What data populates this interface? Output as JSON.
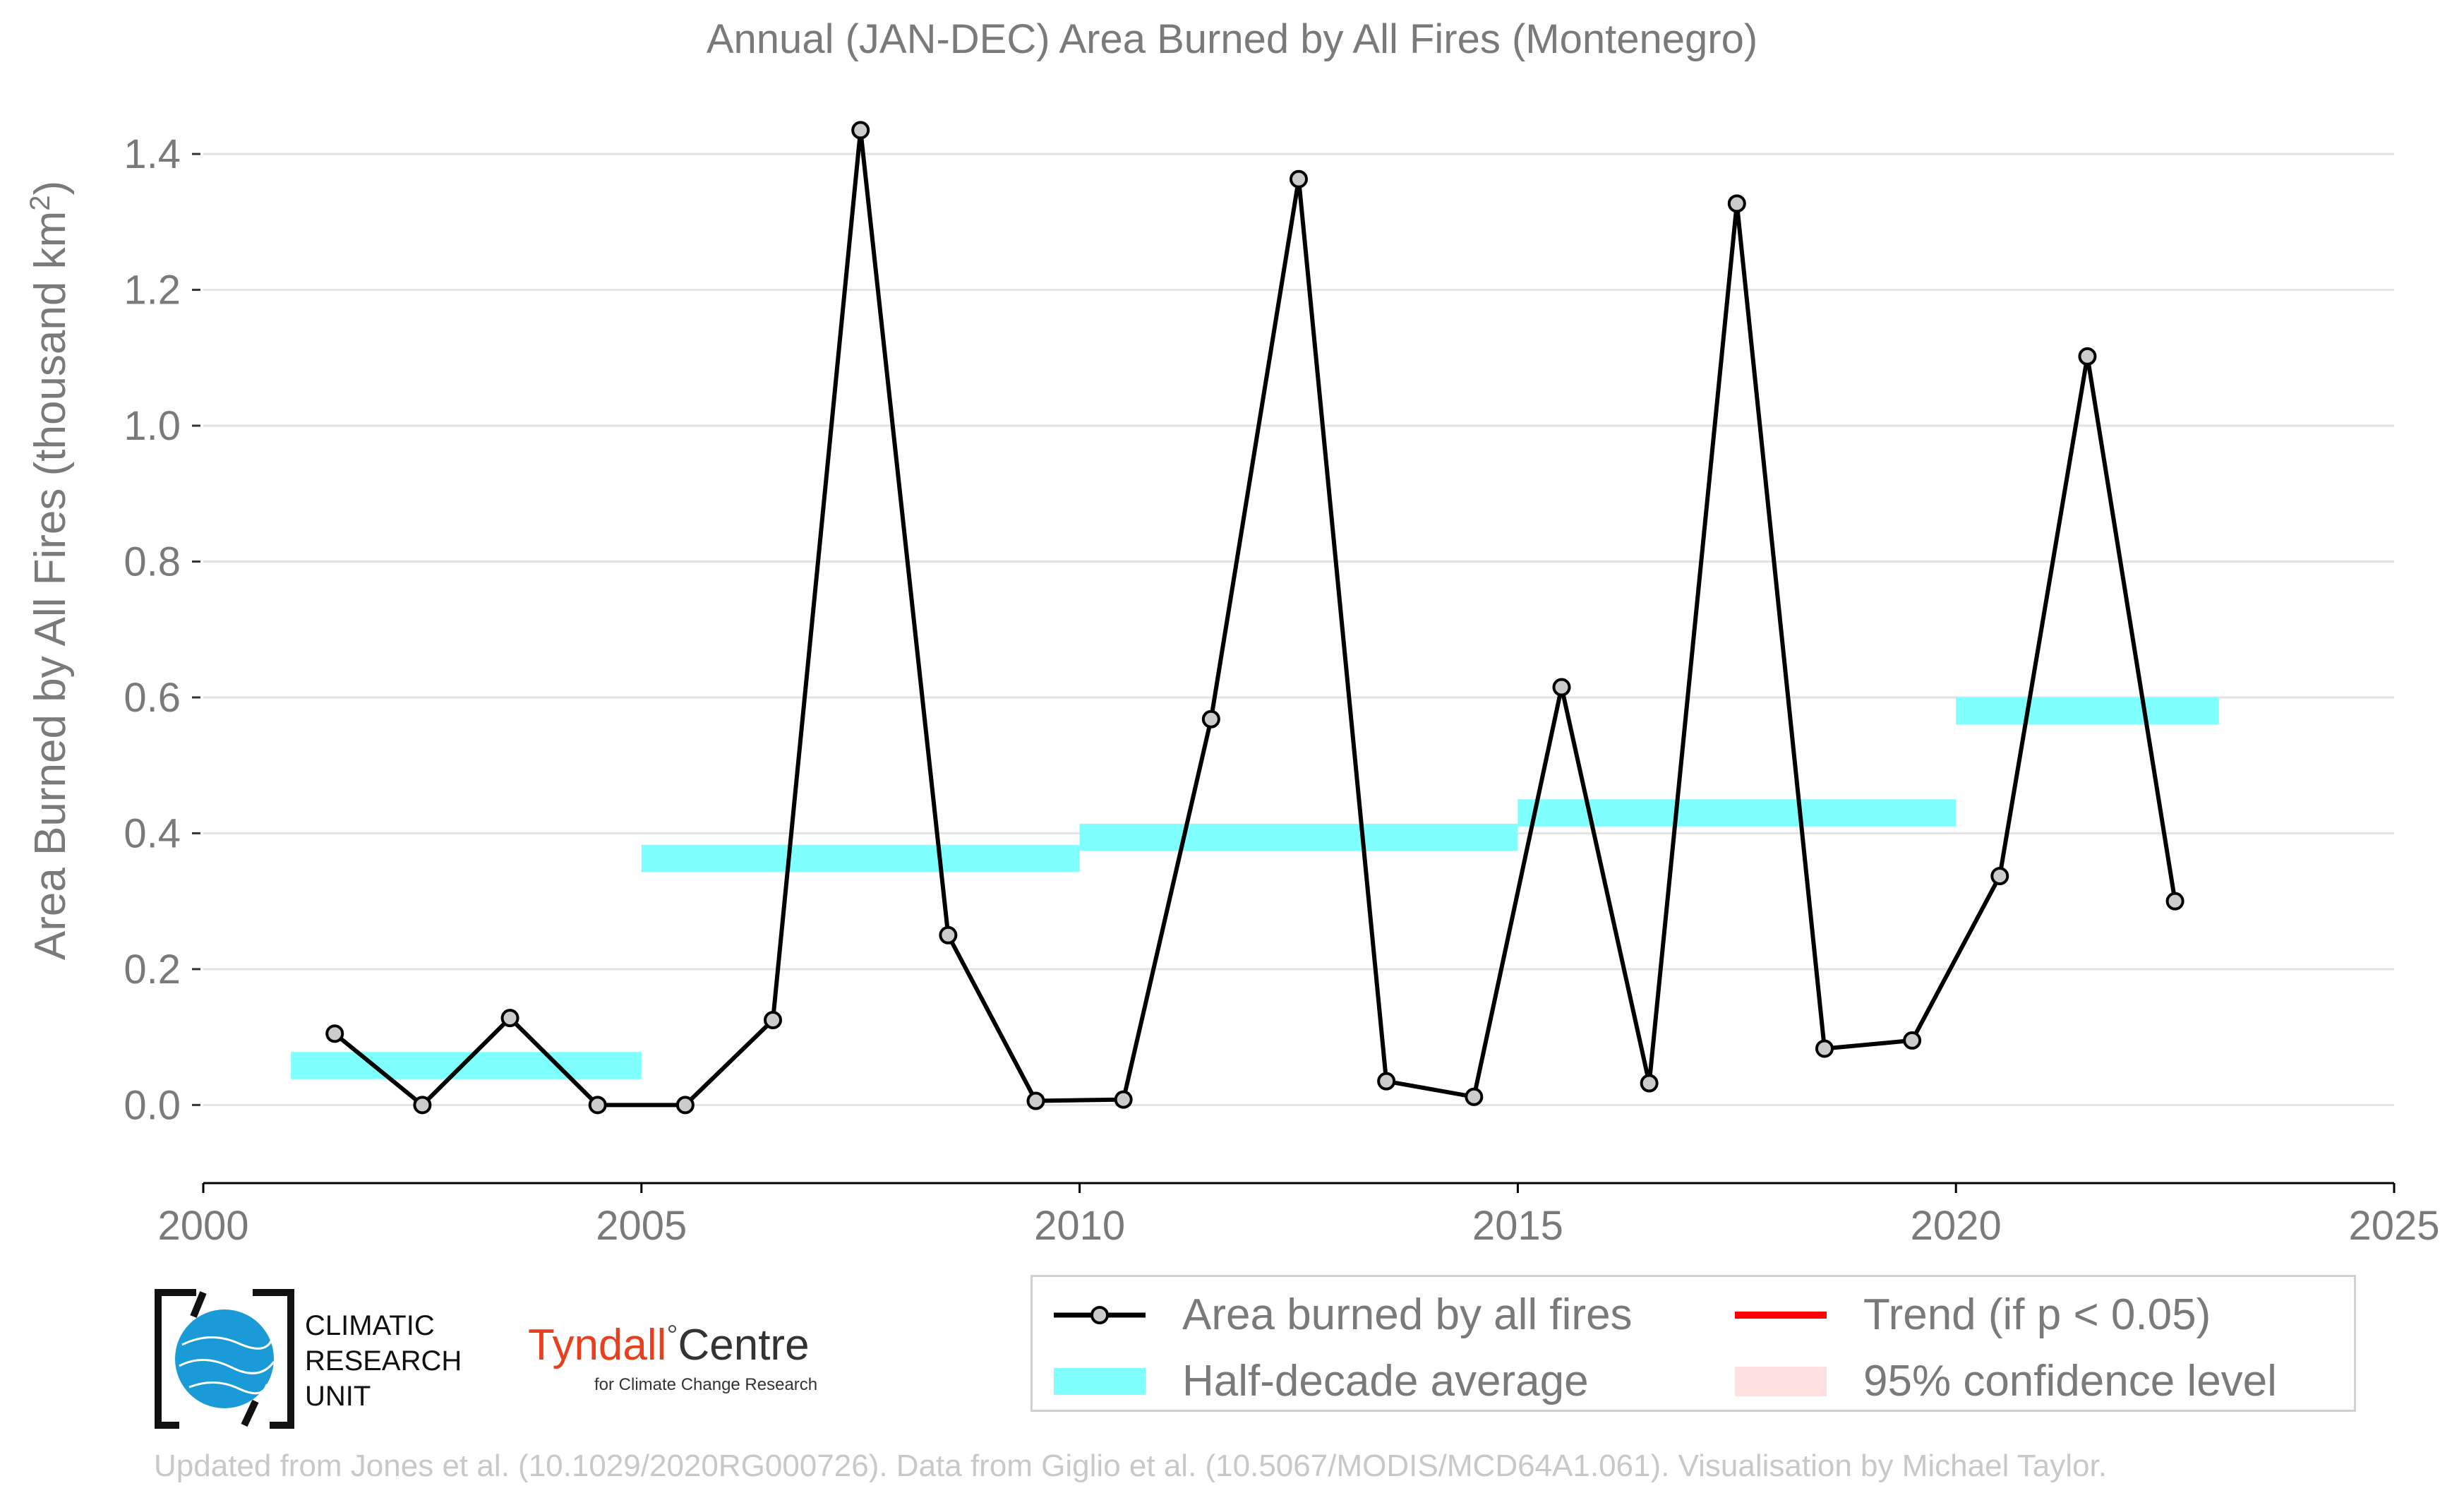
{
  "chart_data": {
    "type": "line",
    "title": "Annual (JAN-DEC) Area Burned by All Fires (Montenegro)",
    "ylabel_main": "Area Burned by All Fires (thousand km",
    "ylabel_sup": "2",
    "ylabel_end": ")",
    "xlim": [
      2000,
      2025
    ],
    "ylim": [
      -0.115,
      1.45
    ],
    "x_ticks": [
      2000,
      2005,
      2010,
      2015,
      2020,
      2025
    ],
    "y_ticks": [
      0.0,
      0.2,
      0.4,
      0.6,
      0.8,
      1.0,
      1.2,
      1.4
    ],
    "y_tick_labels": [
      "0.0",
      "0.2",
      "0.4",
      "0.6",
      "0.8",
      "1.0",
      "1.2",
      "1.4"
    ],
    "grid": "horizontal",
    "series": [
      {
        "name": "Area burned by all fires",
        "color": "#000000",
        "marker_fill": "#cccccc",
        "x": [
          2001.5,
          2002.5,
          2003.5,
          2004.5,
          2005.5,
          2006.5,
          2007.5,
          2008.5,
          2009.5,
          2010.5,
          2011.5,
          2012.5,
          2013.5,
          2014.5,
          2015.5,
          2016.5,
          2017.5,
          2018.5,
          2019.5,
          2020.5,
          2021.5,
          2022.5
        ],
        "values": [
          0.105,
          0.0,
          0.128,
          0.0,
          0.0,
          0.125,
          1.435,
          0.25,
          0.006,
          0.008,
          0.568,
          1.363,
          0.035,
          0.012,
          0.615,
          0.032,
          1.327,
          0.083,
          0.095,
          0.337,
          1.102,
          0.3
        ]
      }
    ],
    "half_decade_average": {
      "name": "Half-decade average",
      "color": "#80ffff",
      "bands": [
        {
          "x_start": 2001,
          "x_end": 2005,
          "y_low": 0.038,
          "y_high": 0.078
        },
        {
          "x_start": 2005,
          "x_end": 2010,
          "y_low": 0.343,
          "y_high": 0.383
        },
        {
          "x_start": 2010,
          "x_end": 2015,
          "y_low": 0.374,
          "y_high": 0.414
        },
        {
          "x_start": 2015,
          "x_end": 2020,
          "y_low": 0.41,
          "y_high": 0.45
        },
        {
          "x_start": 2020,
          "x_end": 2023,
          "y_low": 0.56,
          "y_high": 0.6
        }
      ]
    },
    "legend": {
      "placement": "bottom-right",
      "entries": [
        {
          "label": "Area burned by all fires",
          "key": "line-marker",
          "color": "#000000"
        },
        {
          "label": "Trend (if p < 0.05)",
          "key": "line",
          "color": "#ff0000"
        },
        {
          "label": "Half-decade average",
          "key": "band",
          "color": "#80ffff"
        },
        {
          "label": "95% confidence level",
          "key": "band",
          "color": "#ffe0e0"
        }
      ]
    }
  },
  "logos": {
    "cru_lines": [
      "CLIMATIC",
      "RESEARCH",
      "UNIT"
    ],
    "tyndall_name_red": "Tyndall",
    "tyndall_degree": "°",
    "tyndall_name_dark": "Centre",
    "tyndall_sub": "for Climate Change Research"
  },
  "footer": "Updated from Jones et al. (10.1029/2020RG000726). Data from Giglio et al. (10.5067/MODIS/MCD64A1.061). Visualisation by Michael Taylor."
}
